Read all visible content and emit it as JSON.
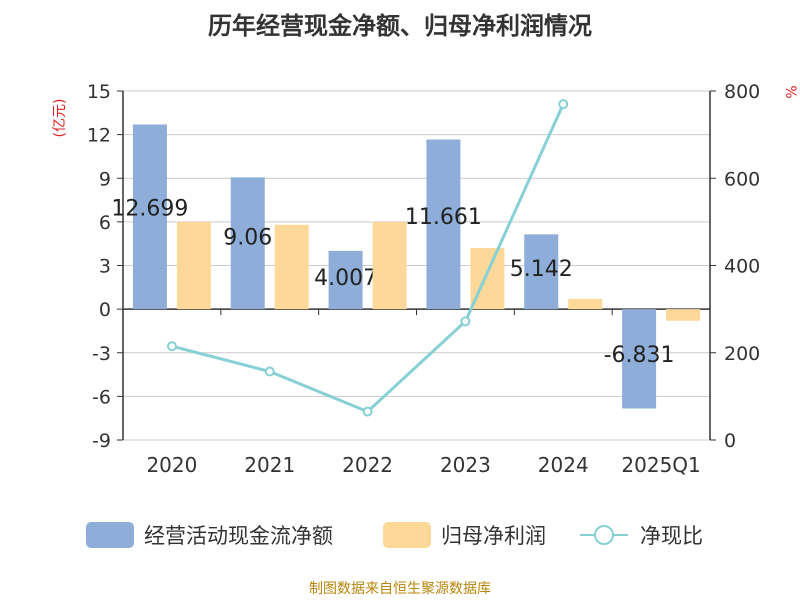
{
  "title": "历年经营现金净额、归母净利润情况",
  "source": "制图数据来自恒生聚源数据库",
  "chart_data": {
    "type": "bar",
    "categories": [
      "2020",
      "2021",
      "2022",
      "2023",
      "2024",
      "2025Q1"
    ],
    "y_left": {
      "unit": "(亿元)",
      "min": -9,
      "max": 15,
      "ticks": [
        "15",
        "12",
        "9",
        "6",
        "3",
        "0",
        "-3",
        "-6",
        "-9"
      ]
    },
    "y_right": {
      "unit": "%",
      "min": 0,
      "max": 800,
      "ticks": [
        "800",
        "600",
        "400",
        "200",
        "0"
      ]
    },
    "series": [
      {
        "name": "经营活动现金流净额",
        "type": "bar",
        "axis": "left",
        "color": "#8eadd9",
        "values": [
          12.699,
          9.06,
          4.007,
          11.661,
          5.142,
          -6.831
        ],
        "labels": [
          "12.699",
          "9.06",
          "4.007",
          "11.661",
          "5.142",
          "-6.831"
        ]
      },
      {
        "name": "归母净利润",
        "type": "bar",
        "axis": "left",
        "color": "#fdd899",
        "values": [
          6.0,
          5.8,
          6.0,
          4.2,
          0.7,
          -0.8
        ]
      },
      {
        "name": "净现比",
        "type": "line",
        "axis": "right",
        "color": "#86d0d6",
        "values": [
          215,
          157,
          65,
          272,
          770,
          null
        ]
      }
    ],
    "grid": true,
    "legend_position": "bottom"
  }
}
